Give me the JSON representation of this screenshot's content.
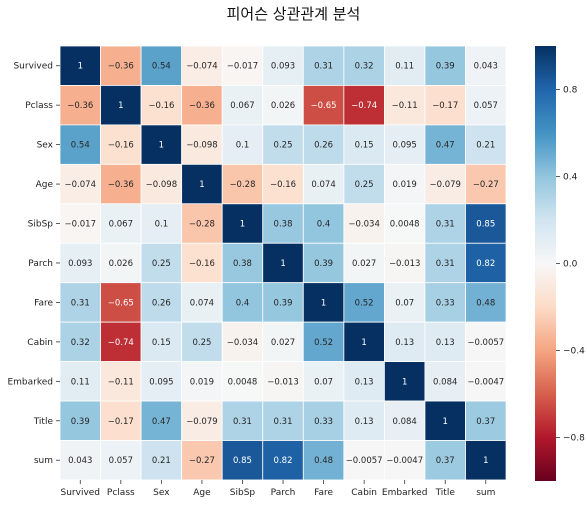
{
  "chart_data": {
    "type": "heatmap",
    "title": "피어슨 상관관계 분석",
    "labels": [
      "Survived",
      "Pclass",
      "Sex",
      "Age",
      "SibSp",
      "Parch",
      "Fare",
      "Cabin",
      "Embarked",
      "Title",
      "sum"
    ],
    "values": [
      [
        1,
        -0.36,
        0.54,
        -0.074,
        -0.017,
        0.093,
        0.31,
        0.32,
        0.11,
        0.39,
        0.043
      ],
      [
        -0.36,
        1,
        -0.16,
        -0.36,
        0.067,
        0.026,
        -0.65,
        -0.74,
        -0.11,
        -0.17,
        0.057
      ],
      [
        0.54,
        -0.16,
        1,
        -0.098,
        0.1,
        0.25,
        0.26,
        0.15,
        0.095,
        0.47,
        0.21
      ],
      [
        -0.074,
        -0.36,
        -0.098,
        1,
        -0.28,
        -0.16,
        0.074,
        0.25,
        0.019,
        -0.079,
        -0.27
      ],
      [
        -0.017,
        0.067,
        0.1,
        -0.28,
        1,
        0.38,
        0.4,
        -0.034,
        0.0048,
        0.31,
        0.85
      ],
      [
        0.093,
        0.026,
        0.25,
        -0.16,
        0.38,
        1,
        0.39,
        0.027,
        -0.013,
        0.31,
        0.82
      ],
      [
        0.31,
        -0.65,
        0.26,
        0.074,
        0.4,
        0.39,
        1,
        0.52,
        0.07,
        0.33,
        0.48
      ],
      [
        0.32,
        -0.74,
        0.15,
        0.25,
        -0.034,
        0.027,
        0.52,
        1,
        0.13,
        0.13,
        -0.0057
      ],
      [
        0.11,
        -0.11,
        0.095,
        0.019,
        0.0048,
        -0.013,
        0.07,
        0.13,
        1,
        0.084,
        -0.0047
      ],
      [
        0.39,
        -0.17,
        0.47,
        -0.079,
        0.31,
        0.31,
        0.33,
        0.13,
        0.084,
        1,
        0.37
      ],
      [
        0.043,
        0.057,
        0.21,
        -0.27,
        0.85,
        0.82,
        0.48,
        -0.0057,
        -0.0047,
        0.37,
        1
      ]
    ],
    "colorbar": {
      "colormap": "RdBu",
      "vmin": -1,
      "vmax": 1,
      "ticks": [
        0.8,
        0.4,
        0.0,
        -0.4,
        -0.8
      ],
      "tick_labels": [
        "0.8",
        "0.4",
        "0.0",
        "−0.4",
        "−0.8"
      ]
    },
    "cell_borders": "white",
    "annotations": true
  }
}
